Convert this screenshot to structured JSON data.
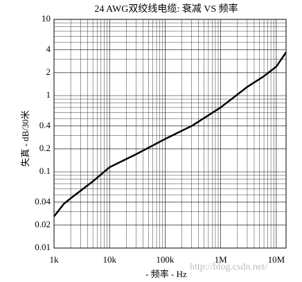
{
  "chart_data": {
    "type": "line",
    "title": "24 AWG双绞线电缆: 衰减 VS 频率",
    "x_label": "- 频率 - Hz",
    "y_label": "失真 - dB/30米",
    "annotation": "http://blog.csdn.net/",
    "log_x": true,
    "log_y": true,
    "grid": true,
    "minor_grid": true,
    "xlim": [
      1000,
      15000000
    ],
    "ylim": [
      0.01,
      10
    ],
    "xticks": [
      {
        "value": 1000,
        "label": "1k"
      },
      {
        "value": 10000,
        "label": "10k"
      },
      {
        "value": 100000,
        "label": "100k"
      },
      {
        "value": 1000000,
        "label": "1M"
      },
      {
        "value": 10000000,
        "label": "10M"
      }
    ],
    "yticks": [
      0.01,
      0.02,
      0.04,
      0.1,
      0.2,
      0.4,
      1,
      2,
      4,
      10
    ],
    "x": [
      1000,
      1500,
      2000,
      5000,
      10000,
      30000,
      100000,
      300000,
      1000000,
      3000000,
      6000000,
      10000000,
      15000000
    ],
    "series": [
      {
        "name": "24 AWG",
        "color": "#000000",
        "values": [
          0.026,
          0.038,
          0.045,
          0.075,
          0.115,
          0.17,
          0.27,
          0.4,
          0.7,
          1.3,
          1.8,
          2.4,
          3.7
        ]
      }
    ]
  }
}
